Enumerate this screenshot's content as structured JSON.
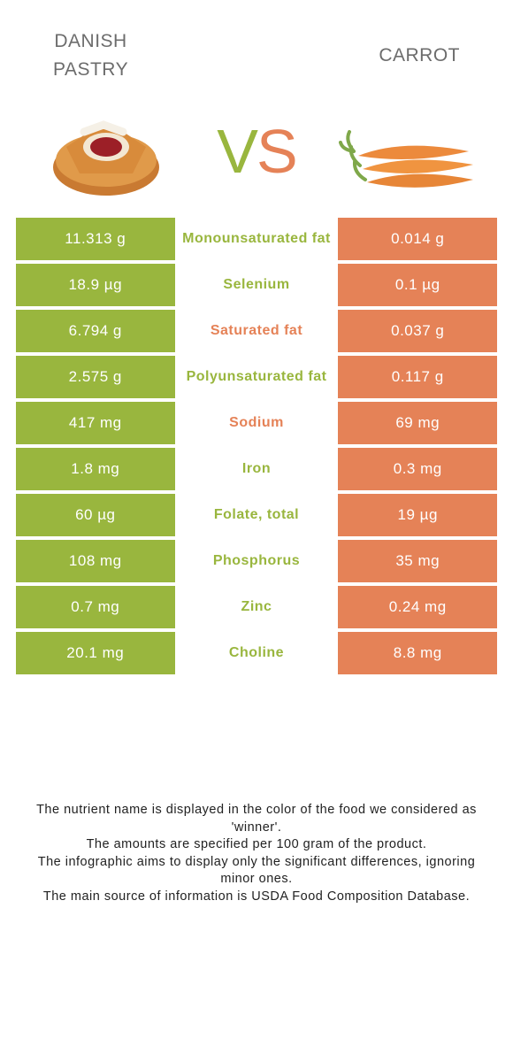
{
  "colors": {
    "left": "#99b63e",
    "right": "#e58257",
    "title": "#6c6c6c"
  },
  "header": {
    "left_title_line1": "Danish",
    "left_title_line2": "pastry",
    "right_title": "Carrot"
  },
  "vs": {
    "v": "V",
    "s": "S"
  },
  "rows": [
    {
      "left": "11.313 g",
      "label": "Monounsaturated fat",
      "right": "0.014 g",
      "winner": "left"
    },
    {
      "left": "18.9 µg",
      "label": "Selenium",
      "right": "0.1 µg",
      "winner": "left"
    },
    {
      "left": "6.794 g",
      "label": "Saturated fat",
      "right": "0.037 g",
      "winner": "right"
    },
    {
      "left": "2.575 g",
      "label": "Polyunsaturated fat",
      "right": "0.117 g",
      "winner": "left"
    },
    {
      "left": "417 mg",
      "label": "Sodium",
      "right": "69 mg",
      "winner": "right"
    },
    {
      "left": "1.8 mg",
      "label": "Iron",
      "right": "0.3 mg",
      "winner": "left"
    },
    {
      "left": "60 µg",
      "label": "Folate, total",
      "right": "19 µg",
      "winner": "left"
    },
    {
      "left": "108 mg",
      "label": "Phosphorus",
      "right": "35 mg",
      "winner": "left"
    },
    {
      "left": "0.7 mg",
      "label": "Zinc",
      "right": "0.24 mg",
      "winner": "left"
    },
    {
      "left": "20.1 mg",
      "label": "Choline",
      "right": "8.8 mg",
      "winner": "left"
    }
  ],
  "footnotes": [
    "The nutrient name is displayed in the color of the food we considered as 'winner'.",
    "The amounts are specified per 100 gram of the product.",
    "The infographic aims to display only the significant differences, ignoring minor ones.",
    "The main source of information is USDA Food Composition Database."
  ]
}
